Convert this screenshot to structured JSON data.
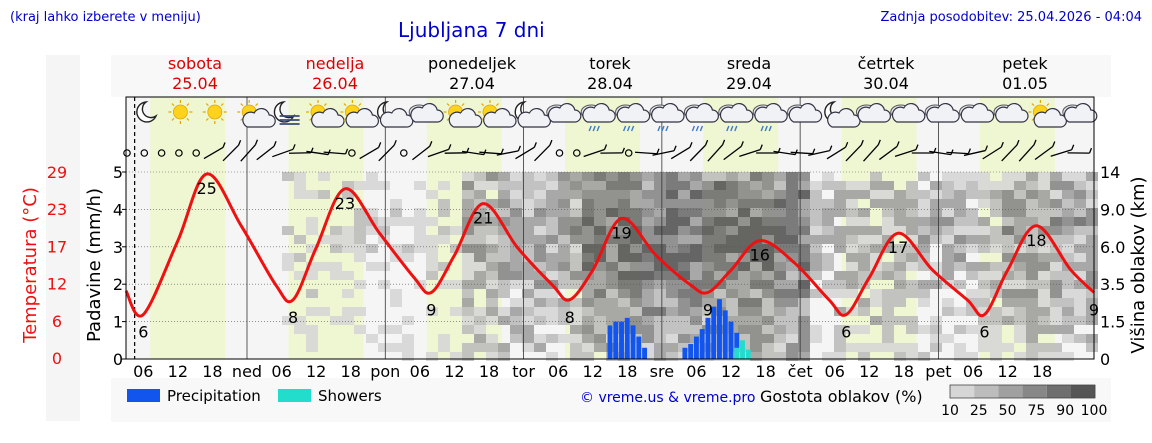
{
  "header": {
    "location_hint": "(kraj lahko izberete v meniju)",
    "title": "Ljubljana 7 dni",
    "last_update": "Zadnja posodobitev: 25.04.2026 - 04:04"
  },
  "days": [
    {
      "name": "sobota",
      "date": "25.04",
      "weekend": true,
      "short": "",
      "start_hour": 3
    },
    {
      "name": "nedelja",
      "date": "26.04",
      "weekend": true,
      "short": "ned"
    },
    {
      "name": "ponedeljek",
      "date": "27.04",
      "weekend": false,
      "short": "pon"
    },
    {
      "name": "torek",
      "date": "28.04",
      "weekend": false,
      "short": "tor"
    },
    {
      "name": "sreda",
      "date": "29.04",
      "weekend": false,
      "short": "sre"
    },
    {
      "name": "četrtek",
      "date": "30.04",
      "weekend": false,
      "short": "čet"
    },
    {
      "name": "petek",
      "date": "01.05",
      "weekend": false,
      "short": "pet"
    }
  ],
  "weather_icons": [
    "moon",
    "sun",
    "sun",
    "sun-cloud",
    "moon-fog",
    "sun-cloud",
    "sun-cloud",
    "moon-cloud",
    "cloud",
    "sun-cloud",
    "sun-cloud",
    "moon-cloud",
    "cloud",
    "cloud-rain",
    "cloud-rain",
    "cloud-rain",
    "cloud-rain",
    "cloud-rain",
    "cloud-rain",
    "cloud",
    "moon-cloud",
    "cloud",
    "cloud",
    "cloud",
    "cloud",
    "cloud",
    "sun-cloud",
    "cloud"
  ],
  "colors": {
    "day_bg": "#eef6d2",
    "night_bg": "#f5f5f5",
    "temperature": "#ee1111",
    "precipitation": "#1155ee",
    "showers": "#22ddcc",
    "title_blue": "#0000cc",
    "weekend_red": "#dd0000"
  },
  "legend": {
    "precipitation": "Precipitation",
    "showers": "Showers",
    "credit": "© vreme.us & vreme.pro",
    "cloud_density": "Gostota oblakov (%)",
    "cloud_scale": [
      "10",
      "25",
      "50",
      "75",
      "90",
      "100"
    ],
    "cloud_colors": [
      "#d6d6d6",
      "#bcbcbc",
      "#a0a0a0",
      "#878787",
      "#6e6e6e",
      "#555555"
    ]
  },
  "chart_data": {
    "type": "line",
    "left_axis_temp": {
      "label": "Temperatura (°C)",
      "ticks": [
        "29",
        "23",
        "17",
        "12",
        "6",
        "0"
      ]
    },
    "left_axis_precip": {
      "label": "Padavine (mm/h)",
      "ticks": [
        "5",
        "4",
        "3",
        "2",
        "1",
        "0"
      ],
      "ylim": [
        0,
        5
      ]
    },
    "right_axis_cloud": {
      "label": "Višina oblakov (km)",
      "ticks": [
        "14",
        "9.0",
        "6.0",
        "3.5",
        "1.5",
        "0"
      ]
    },
    "hour_ticks": [
      "06",
      "12",
      "18"
    ],
    "temperature_extremes": [
      {
        "t": 3,
        "label": "6"
      },
      {
        "t": 14,
        "label": "25"
      },
      {
        "t": 29,
        "label": "8"
      },
      {
        "t": 38,
        "label": "23"
      },
      {
        "t": 53,
        "label": "9"
      },
      {
        "t": 62,
        "label": "21"
      },
      {
        "t": 77,
        "label": "8"
      },
      {
        "t": 86,
        "label": "19"
      },
      {
        "t": 101,
        "label": "9"
      },
      {
        "t": 110,
        "label": "16"
      },
      {
        "t": 125,
        "label": "6"
      },
      {
        "t": 134,
        "label": "17"
      },
      {
        "t": 149,
        "label": "6"
      },
      {
        "t": 158,
        "label": "18"
      },
      {
        "t": 168,
        "label": "9"
      }
    ],
    "temperature_series": {
      "t": [
        0,
        3,
        9,
        14,
        20,
        26,
        29,
        33,
        38,
        44,
        50,
        53,
        57,
        62,
        68,
        74,
        77,
        81,
        86,
        92,
        98,
        101,
        105,
        110,
        116,
        122,
        125,
        129,
        134,
        140,
        146,
        149,
        153,
        158,
        164,
        168
      ],
      "temp": [
        9.2,
        6.0,
        16.0,
        25.0,
        18.0,
        10.0,
        8.0,
        15.0,
        23.0,
        17.0,
        11.0,
        9.0,
        14.0,
        21.0,
        15.0,
        10.0,
        8.0,
        12.0,
        19.0,
        14.0,
        10.0,
        9.0,
        12.0,
        16.0,
        13.0,
        8.0,
        6.0,
        11.0,
        17.0,
        12.0,
        8.0,
        6.0,
        12.0,
        18.0,
        12.0,
        9.0
      ]
    },
    "precipitation": {
      "t": [
        84,
        85,
        86,
        87,
        88,
        89,
        90,
        97,
        98,
        99,
        100,
        101,
        102,
        103,
        104,
        105,
        106
      ],
      "mm_per_h": [
        0.9,
        1.0,
        1.0,
        1.1,
        0.9,
        0.6,
        0.3,
        0.3,
        0.4,
        0.6,
        0.8,
        1.1,
        1.4,
        1.6,
        1.3,
        1.0,
        0.7
      ]
    },
    "showers": {
      "t": [
        106,
        107,
        108
      ],
      "mm_per_h": [
        0.3,
        0.5,
        0.25
      ]
    },
    "x_range_hours": [
      0,
      168
    ]
  }
}
